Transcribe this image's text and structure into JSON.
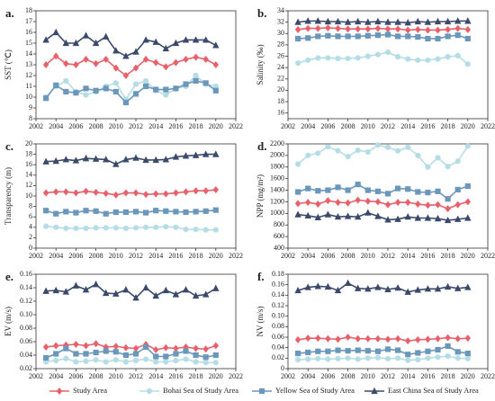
{
  "chart_data": [
    {
      "type": "line",
      "label": "a.",
      "ylabel": "SST (℃)",
      "xlim": [
        2002,
        2022
      ],
      "xticks": [
        2002,
        2004,
        2006,
        2008,
        2010,
        2012,
        2014,
        2016,
        2018,
        2020,
        2022
      ],
      "ylim": [
        8,
        18
      ],
      "yticks": [
        8,
        9,
        10,
        11,
        12,
        13,
        14,
        15,
        16,
        17,
        18
      ],
      "x": [
        2003,
        2004,
        2005,
        2006,
        2007,
        2008,
        2009,
        2010,
        2011,
        2012,
        2013,
        2014,
        2015,
        2016,
        2017,
        2018,
        2019,
        2020
      ],
      "series": [
        {
          "name": "Study Area",
          "color": "#e8606a",
          "values": [
            13,
            13.8,
            13.1,
            13,
            13.5,
            13.1,
            13.5,
            12.7,
            12,
            12.7,
            13.5,
            13.2,
            12.8,
            13.2,
            13.5,
            13.7,
            13.5,
            13.0
          ]
        },
        {
          "name": "Bohai Sea of Study Area",
          "color": "#b5dde6",
          "values": [
            10,
            11,
            11.5,
            10.5,
            10.2,
            10.5,
            11,
            11.3,
            9.8,
            11.2,
            11.5,
            10.6,
            10.2,
            10.8,
            11,
            12,
            11.2,
            11.0
          ]
        },
        {
          "name": "Yellow Sea of Study Area",
          "color": "#6b97bb",
          "values": [
            9.9,
            11.1,
            10.5,
            10.4,
            10.8,
            10.6,
            10.8,
            10.5,
            9.5,
            10.3,
            11,
            10.7,
            10.7,
            10.8,
            11.2,
            11.5,
            11.3,
            10.6
          ]
        },
        {
          "name": "East China Sea of Study Area",
          "color": "#3b4a6b",
          "values": [
            15.3,
            16,
            15,
            15,
            15.7,
            15,
            15.6,
            14.3,
            13.8,
            14.2,
            15.3,
            15.1,
            14.5,
            15,
            15.3,
            15.3,
            15.3,
            14.8
          ]
        }
      ]
    },
    {
      "type": "line",
      "label": "b.",
      "ylabel": "Salinity (‰)",
      "xlim": [
        2002,
        2022
      ],
      "xticks": [
        2002,
        2004,
        2006,
        2008,
        2010,
        2012,
        2014,
        2016,
        2018,
        2020,
        2022
      ],
      "ylim": [
        15,
        34
      ],
      "yticks": [
        16,
        18,
        20,
        22,
        24,
        26,
        28,
        30,
        32,
        34
      ],
      "x": [
        2003,
        2004,
        2005,
        2006,
        2007,
        2008,
        2009,
        2010,
        2011,
        2012,
        2013,
        2014,
        2015,
        2016,
        2017,
        2018,
        2019,
        2020
      ],
      "series": [
        {
          "values": [
            30.7,
            30.9,
            30.9,
            31,
            30.9,
            30.8,
            30.8,
            30.8,
            30.9,
            30.8,
            30.8,
            30.6,
            30.7,
            30.6,
            30.6,
            30.7,
            30.9,
            30.7
          ]
        },
        {
          "values": [
            24.8,
            25.3,
            25.7,
            25.7,
            25.6,
            25.6,
            25.7,
            26,
            26.3,
            26.7,
            25.9,
            25.5,
            25.3,
            25.3,
            25.5,
            25.9,
            26.1,
            24.6
          ]
        },
        {
          "values": [
            29.1,
            29.2,
            29.5,
            29.6,
            29.5,
            29.5,
            29.5,
            29.6,
            29.7,
            29.8,
            29.5,
            29.5,
            29.4,
            29.1,
            29.1,
            29.5,
            29.7,
            29.1
          ]
        },
        {
          "values": [
            32,
            32.2,
            32.2,
            32.1,
            32.1,
            32,
            32.1,
            32,
            32.1,
            32,
            32,
            31.9,
            32.1,
            32,
            32.1,
            32.1,
            32.2,
            32.2
          ]
        }
      ]
    },
    {
      "type": "line",
      "label": "c.",
      "ylabel": "Transparency (m)",
      "xlim": [
        2002,
        2022
      ],
      "xticks": [
        2002,
        2004,
        2006,
        2008,
        2010,
        2012,
        2014,
        2016,
        2018,
        2020,
        2022
      ],
      "ylim": [
        0,
        20
      ],
      "yticks": [
        0,
        2,
        4,
        6,
        8,
        10,
        12,
        14,
        16,
        18,
        20
      ],
      "x": [
        2003,
        2004,
        2005,
        2006,
        2007,
        2008,
        2009,
        2010,
        2011,
        2012,
        2013,
        2014,
        2015,
        2016,
        2017,
        2018,
        2019,
        2020
      ],
      "series": [
        {
          "values": [
            10.6,
            10.8,
            10.8,
            10.6,
            10.9,
            10.7,
            10.5,
            10.2,
            10.6,
            10.6,
            10.3,
            10.4,
            10.4,
            10.6,
            10.8,
            11,
            11,
            11.2
          ]
        },
        {
          "values": [
            4.2,
            4,
            3.8,
            3.8,
            3.8,
            3.9,
            3.9,
            3.9,
            3.8,
            3.9,
            4,
            4,
            4.1,
            4,
            3.6,
            3.6,
            3.5,
            3.5
          ]
        },
        {
          "values": [
            7.2,
            6.6,
            7,
            6.8,
            7.2,
            7.1,
            6.6,
            6.9,
            6.9,
            7,
            6.8,
            7.2,
            7.1,
            7,
            6.9,
            7,
            7.1,
            7.3
          ]
        },
        {
          "values": [
            16.6,
            16.7,
            17,
            16.8,
            17.2,
            17.1,
            17,
            16.1,
            17,
            17.3,
            16.9,
            16.9,
            17,
            17.5,
            17.7,
            17.8,
            18,
            18
          ]
        }
      ]
    },
    {
      "type": "line",
      "label": "d.",
      "ylabel": "NPP (mg/m²)",
      "xlim": [
        2002,
        2022
      ],
      "xticks": [
        2002,
        2004,
        2006,
        2008,
        2010,
        2012,
        2014,
        2016,
        2018,
        2020,
        2022
      ],
      "ylim": [
        400,
        2200
      ],
      "yticks": [
        400,
        600,
        800,
        1000,
        1200,
        1400,
        1600,
        1800,
        2000,
        2200
      ],
      "x": [
        2003,
        2004,
        2005,
        2006,
        2007,
        2008,
        2009,
        2010,
        2011,
        2012,
        2013,
        2014,
        2015,
        2016,
        2017,
        2018,
        2019,
        2020
      ],
      "series": [
        {
          "values": [
            1170,
            1190,
            1160,
            1220,
            1190,
            1180,
            1230,
            1210,
            1200,
            1150,
            1190,
            1190,
            1160,
            1140,
            1150,
            1080,
            1150,
            1200
          ]
        },
        {
          "values": [
            1850,
            2000,
            2040,
            2150,
            2080,
            1980,
            2090,
            2060,
            2180,
            2140,
            2080,
            2140,
            2000,
            1800,
            1960,
            1810,
            1900,
            2160
          ]
        },
        {
          "values": [
            1370,
            1430,
            1390,
            1400,
            1450,
            1400,
            1500,
            1400,
            1380,
            1340,
            1430,
            1420,
            1370,
            1360,
            1380,
            1250,
            1410,
            1470
          ]
        },
        {
          "values": [
            980,
            960,
            930,
            980,
            940,
            950,
            940,
            1010,
            950,
            890,
            900,
            940,
            920,
            920,
            910,
            880,
            900,
            920
          ]
        }
      ]
    },
    {
      "type": "line",
      "label": "e.",
      "ylabel": "EV (m/s)",
      "xlim": [
        2002,
        2022
      ],
      "xticks": [
        2002,
        2004,
        2006,
        2008,
        2010,
        2012,
        2014,
        2016,
        2018,
        2020,
        2022
      ],
      "ylim": [
        0.02,
        0.16
      ],
      "yticks": [
        0.02,
        0.04,
        0.06,
        0.08,
        {
          "value": 0.1,
          "label": "0.10"
        },
        0.12,
        0.14,
        0.16
      ],
      "x": [
        2003,
        2004,
        2005,
        2006,
        2007,
        2008,
        2009,
        2010,
        2011,
        2012,
        2013,
        2014,
        2015,
        2016,
        2017,
        2018,
        2019,
        2020
      ],
      "series": [
        {
          "values": [
            0.052,
            0.054,
            0.055,
            0.056,
            0.054,
            0.057,
            0.052,
            0.053,
            0.051,
            0.05,
            0.056,
            0.048,
            0.051,
            0.05,
            0.052,
            0.05,
            0.049,
            0.054
          ]
        },
        {
          "values": [
            0.03,
            0.032,
            0.035,
            0.03,
            0.031,
            0.033,
            0.03,
            0.033,
            0.03,
            0.032,
            0.034,
            0.03,
            0.03,
            0.032,
            0.034,
            0.03,
            0.029,
            0.029
          ]
        },
        {
          "values": [
            0.036,
            0.042,
            0.05,
            0.042,
            0.042,
            0.044,
            0.046,
            0.045,
            0.04,
            0.042,
            0.052,
            0.038,
            0.038,
            0.042,
            0.046,
            0.04,
            0.037,
            0.04
          ]
        },
        {
          "values": [
            0.135,
            0.136,
            0.134,
            0.143,
            0.137,
            0.145,
            0.132,
            0.131,
            0.137,
            0.125,
            0.14,
            0.128,
            0.136,
            0.13,
            0.137,
            0.128,
            0.13,
            0.139
          ]
        }
      ]
    },
    {
      "type": "line",
      "label": "f.",
      "ylabel": "NV (m/s)",
      "xlim": [
        2002,
        2022
      ],
      "xticks": [
        2002,
        2004,
        2006,
        2008,
        2010,
        2012,
        2014,
        2016,
        2018,
        2020,
        2022
      ],
      "ylim": [
        0,
        0.18
      ],
      "yticks": [
        0,
        0.02,
        0.04,
        0.06,
        0.08,
        {
          "value": 0.1,
          "label": "0.10"
        },
        0.12,
        0.14,
        0.16,
        0.18
      ],
      "x": [
        2003,
        2004,
        2005,
        2006,
        2007,
        2008,
        2009,
        2010,
        2011,
        2012,
        2013,
        2014,
        2015,
        2016,
        2017,
        2018,
        2019,
        2020
      ],
      "series": [
        {
          "values": [
            0.055,
            0.058,
            0.058,
            0.057,
            0.056,
            0.06,
            0.057,
            0.057,
            0.057,
            0.056,
            0.057,
            0.053,
            0.055,
            0.056,
            0.057,
            0.059,
            0.057,
            0.058
          ]
        },
        {
          "values": [
            0.017,
            0.018,
            0.019,
            0.018,
            0.019,
            0.02,
            0.018,
            0.02,
            0.021,
            0.019,
            0.02,
            0.016,
            0.017,
            0.02,
            0.022,
            0.024,
            0.02,
            0.019
          ]
        },
        {
          "values": [
            0.029,
            0.031,
            0.033,
            0.033,
            0.035,
            0.034,
            0.035,
            0.034,
            0.033,
            0.037,
            0.035,
            0.027,
            0.03,
            0.033,
            0.036,
            0.043,
            0.032,
            0.029
          ]
        },
        {
          "values": [
            0.149,
            0.155,
            0.157,
            0.156,
            0.149,
            0.163,
            0.153,
            0.152,
            0.155,
            0.151,
            0.154,
            0.146,
            0.15,
            0.152,
            0.152,
            0.156,
            0.153,
            0.155
          ]
        }
      ]
    }
  ]
}
